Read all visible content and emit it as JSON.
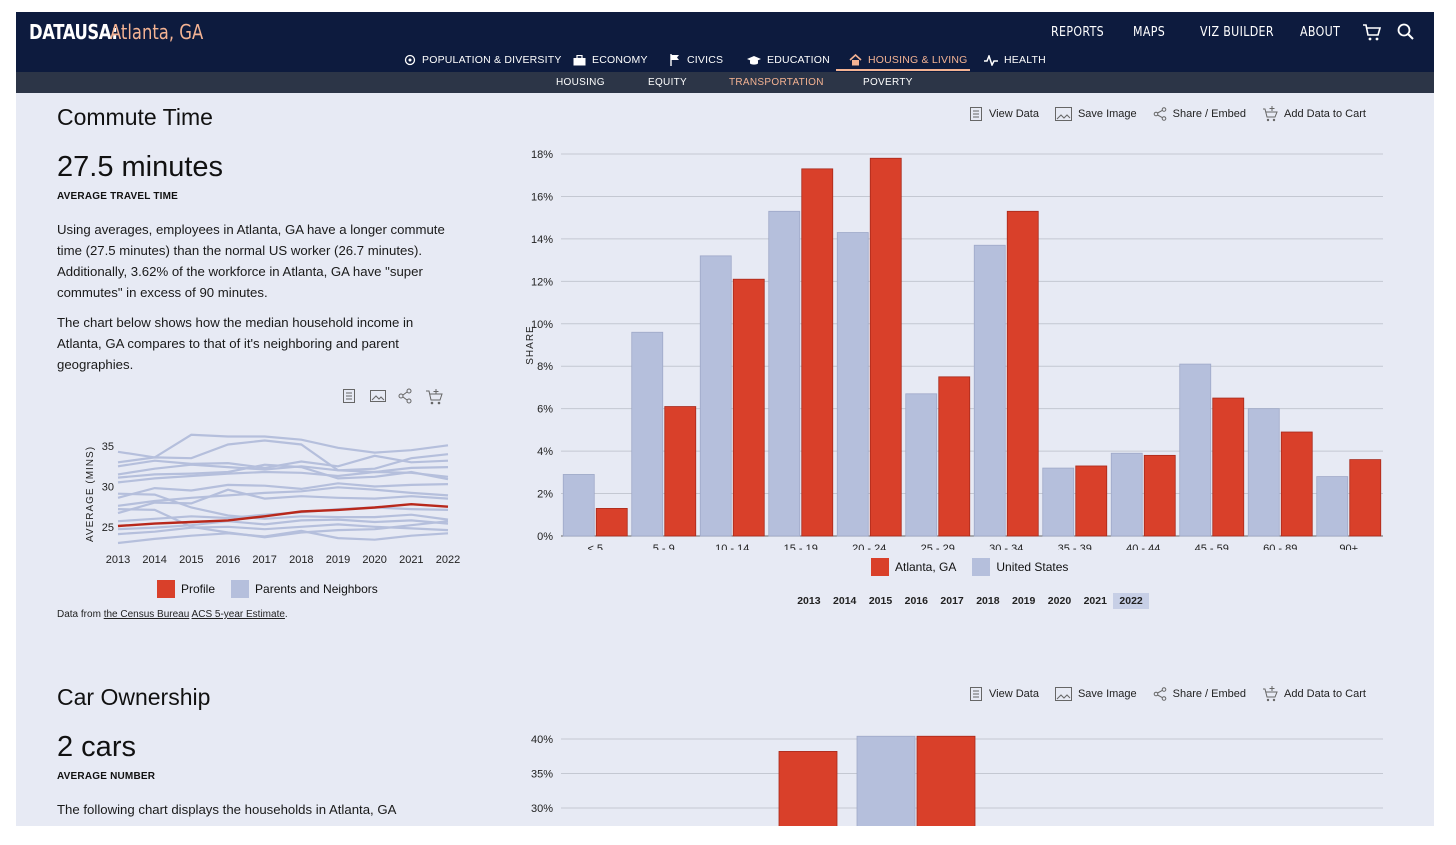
{
  "header": {
    "logo": "DATAUSA:",
    "location": "Atlanta, GA",
    "nav": [
      "REPORTS",
      "MAPS",
      "VIZ BUILDER",
      "ABOUT"
    ],
    "categories": [
      {
        "label": "POPULATION & DIVERSITY",
        "icon": "population-icon"
      },
      {
        "label": "ECONOMY",
        "icon": "briefcase-icon"
      },
      {
        "label": "CIVICS",
        "icon": "flag-icon"
      },
      {
        "label": "EDUCATION",
        "icon": "graduation-cap-icon"
      },
      {
        "label": "HOUSING & LIVING",
        "icon": "house-icon",
        "active": true
      },
      {
        "label": "HEALTH",
        "icon": "heartbeat-icon"
      }
    ],
    "subnav": [
      {
        "label": "HOUSING"
      },
      {
        "label": "EQUITY"
      },
      {
        "label": "TRANSPORTATION",
        "active": true
      },
      {
        "label": "POVERTY"
      }
    ]
  },
  "tools": {
    "view_data": "View Data",
    "save_image": "Save Image",
    "share_embed": "Share / Embed",
    "add_to_cart": "Add Data to Cart"
  },
  "commute": {
    "title": "Commute Time",
    "stat": "27.5 minutes",
    "stat_label": "AVERAGE TRAVEL TIME",
    "para1": "Using averages, employees in Atlanta, GA have a longer commute time (27.5 minutes) than the normal US worker (26.7 minutes). Additionally, 3.62% of the workforce in Atlanta, GA have \"super commutes\" in excess of 90 minutes.",
    "para2": "The chart below shows how the median household income in Atlanta, GA compares to that of it's neighboring and parent geographies.",
    "source_prefix": "Data from ",
    "source_link1": "the Census Bureau",
    "source_link2": "ACS 5-year Estimate",
    "source_suffix": "."
  },
  "years": [
    "2013",
    "2014",
    "2015",
    "2016",
    "2017",
    "2018",
    "2019",
    "2020",
    "2021",
    "2022"
  ],
  "selected_year": "2022",
  "colors": {
    "atlanta": "#d9402a",
    "us": "#b5bfdc",
    "nav_bg": "#0d1b3e",
    "accent": "#f4b393"
  },
  "legend": {
    "atlanta": "Atlanta, GA",
    "us": "United States",
    "profile": "Profile",
    "neighbors": "Parents and Neighbors"
  },
  "car": {
    "title": "Car Ownership",
    "stat": "2 cars",
    "stat_label": "AVERAGE NUMBER",
    "para": "The following chart displays the households in Atlanta, GA"
  },
  "chart_data": [
    {
      "type": "bar",
      "ylabel": "SHARE",
      "ylim": [
        0,
        18
      ],
      "yticks": [
        "0%",
        "2%",
        "4%",
        "6%",
        "8%",
        "10%",
        "12%",
        "14%",
        "16%",
        "18%"
      ],
      "categories": [
        "< 5",
        "5 - 9",
        "10 - 14",
        "15 - 19",
        "20 - 24",
        "25 - 29",
        "30 - 34",
        "35 - 39",
        "40 - 44",
        "45 - 59",
        "60 - 89",
        "90+"
      ],
      "series": [
        {
          "name": "United States",
          "values": [
            2.9,
            9.6,
            13.2,
            15.3,
            14.3,
            6.7,
            13.7,
            3.2,
            3.9,
            8.1,
            6.0,
            2.8
          ]
        },
        {
          "name": "Atlanta, GA",
          "values": [
            1.3,
            6.1,
            12.1,
            17.3,
            17.8,
            7.5,
            15.3,
            3.3,
            3.8,
            6.5,
            4.9,
            3.6
          ]
        }
      ],
      "grid": true,
      "legend_position": "bottom"
    },
    {
      "type": "line",
      "ylabel": "AVERAGE (MINS)",
      "yticks": [
        25,
        30,
        35
      ],
      "ylim": [
        22.5,
        37
      ],
      "x": [
        "2013",
        "2014",
        "2015",
        "2016",
        "2017",
        "2018",
        "2019",
        "2020",
        "2021",
        "2022"
      ],
      "series": [
        {
          "name": "Profile",
          "values": [
            25.1,
            25.4,
            25.6,
            25.8,
            26.3,
            26.9,
            27.1,
            27.4,
            27.8,
            27.5
          ]
        },
        {
          "values": [
            34.3,
            33.6,
            36.4,
            36.2,
            36.2,
            35.8,
            34.8,
            34.2,
            34.5,
            35.1
          ]
        },
        {
          "values": [
            33.0,
            33.6,
            33.5,
            35.2,
            35.7,
            35.2,
            32.0,
            32.2,
            33.5,
            34.0
          ]
        },
        {
          "values": [
            32.5,
            33.2,
            32.8,
            32.9,
            32.3,
            33.1,
            32.5,
            33.8,
            33.0,
            33.2
          ]
        },
        {
          "values": [
            31.5,
            32.2,
            32.7,
            32.4,
            32.1,
            32.5,
            32.0,
            31.8,
            32.3,
            32.4
          ]
        },
        {
          "values": [
            30.5,
            31.0,
            31.3,
            31.6,
            31.8,
            31.7,
            31.3,
            31.8,
            31.7,
            31.2
          ]
        },
        {
          "values": [
            31.1,
            31.5,
            31.6,
            31.8,
            32.7,
            32.4,
            31.0,
            31.2,
            31.8,
            30.9
          ]
        },
        {
          "values": [
            28.6,
            29.8,
            29.5,
            30.2,
            30.1,
            29.7,
            30.4,
            30.0,
            30.2,
            30.3
          ]
        },
        {
          "values": [
            27.6,
            28.2,
            28.6,
            28.9,
            29.2,
            29.4,
            29.9,
            29.6,
            29.2,
            28.9
          ]
        },
        {
          "values": [
            26.7,
            28.0,
            27.9,
            29.6,
            28.5,
            28.8,
            28.6,
            28.5,
            28.8,
            28.5
          ]
        },
        {
          "values": [
            25.7,
            26.0,
            26.3,
            26.1,
            26.5,
            26.8,
            27.2,
            27.4,
            27.2,
            27.1
          ]
        },
        {
          "values": [
            24.7,
            24.9,
            25.2,
            25.7,
            25.3,
            25.8,
            25.9,
            25.6,
            25.8,
            25.4
          ]
        },
        {
          "values": [
            24.1,
            24.4,
            24.9,
            25.0,
            24.7,
            25.0,
            25.3,
            25.0,
            24.8,
            24.6
          ]
        },
        {
          "values": [
            23.0,
            23.5,
            23.9,
            24.2,
            23.8,
            24.5,
            23.6,
            23.4,
            23.9,
            24.2
          ]
        },
        {
          "values": [
            27.2,
            27.1,
            25.0,
            24.3,
            23.7,
            24.3,
            24.6,
            24.7,
            25.2,
            25.7
          ]
        },
        {
          "values": [
            29.1,
            29.0,
            27.4,
            26.4,
            26.0,
            26.3,
            26.2,
            26.2,
            26.5,
            25.9
          ]
        }
      ],
      "legend_position": "bottom"
    },
    {
      "type": "bar",
      "ylim": [
        0,
        40
      ],
      "yticks": [
        "30%",
        "35%",
        "40%"
      ],
      "series": [
        {
          "name": "Atlanta, GA",
          "values": [
            38.2,
            40.4
          ]
        },
        {
          "name": "United States",
          "values": [
            40.4
          ]
        }
      ]
    }
  ]
}
